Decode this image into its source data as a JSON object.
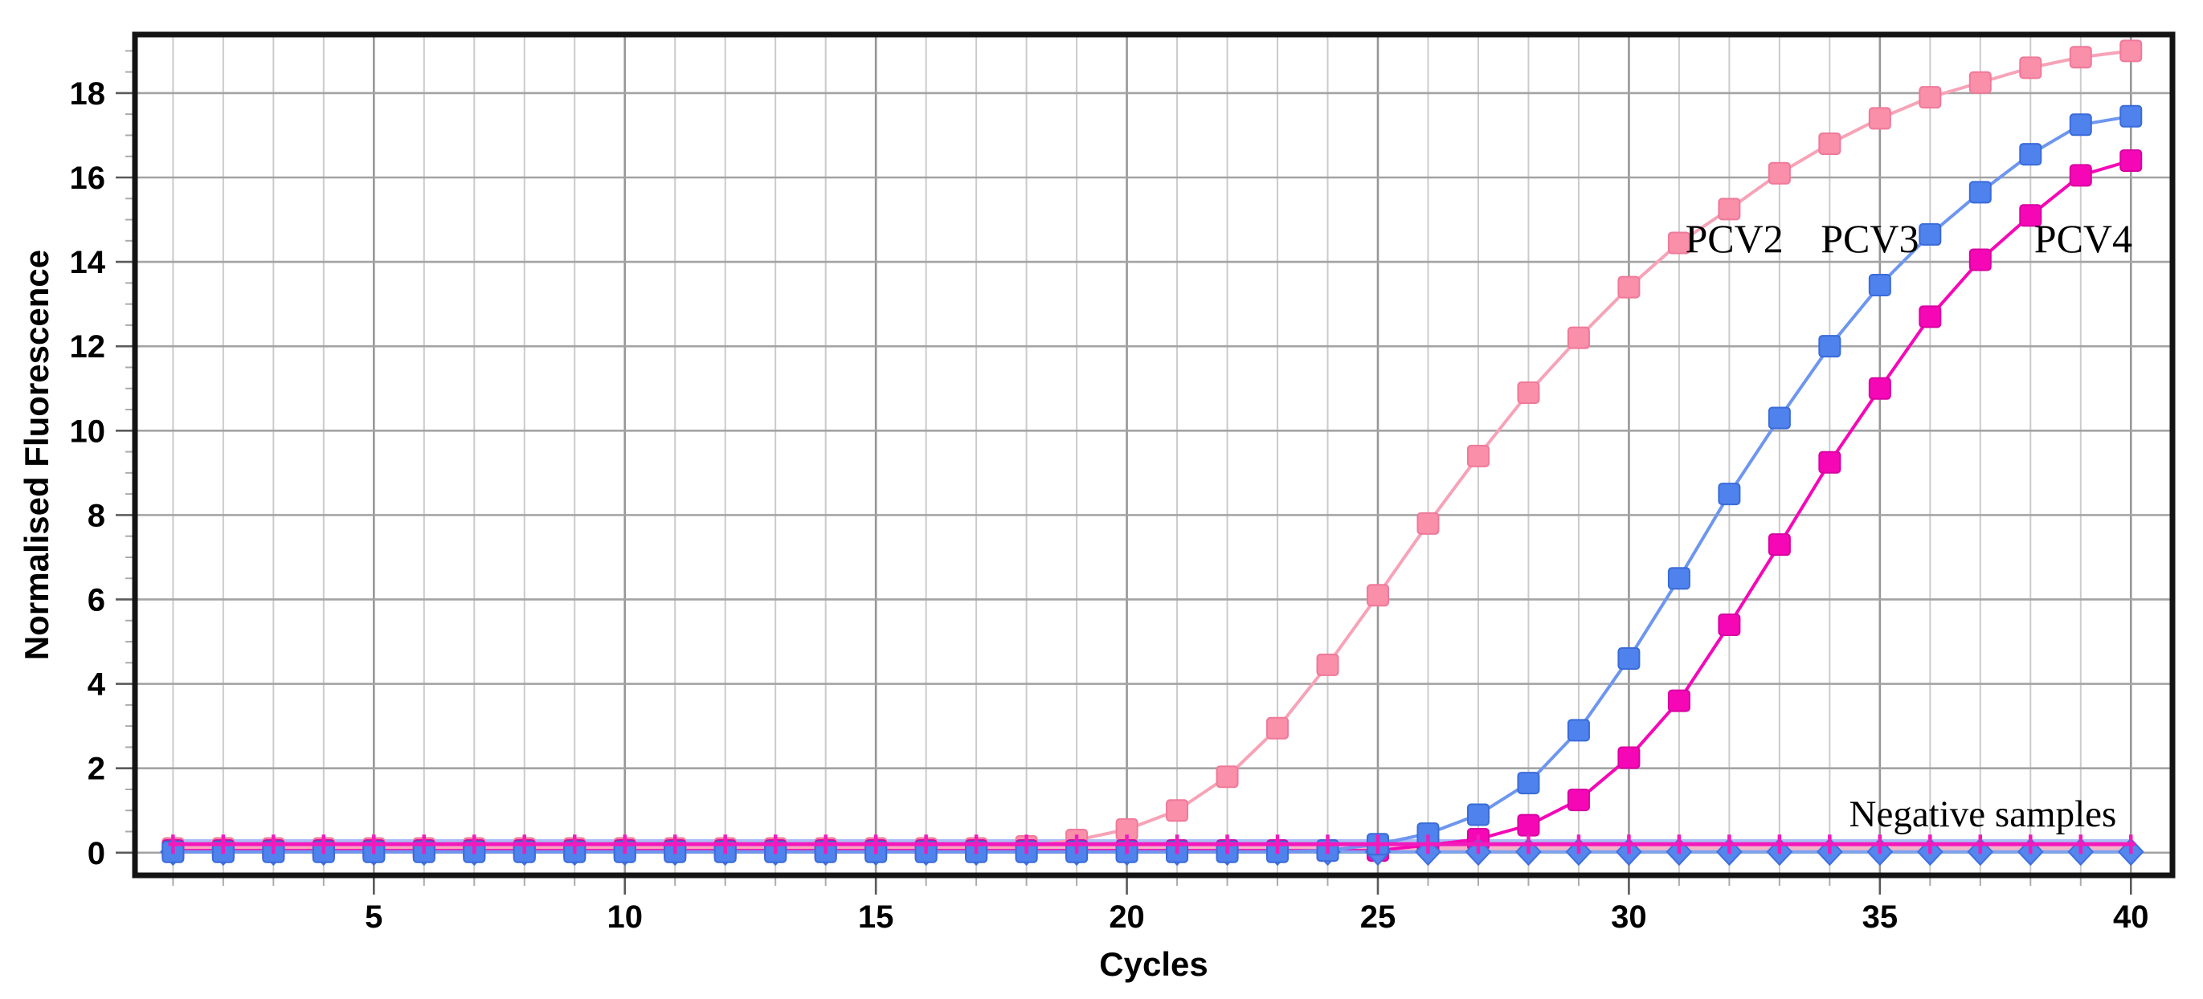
{
  "chart_data": {
    "type": "line",
    "title": "",
    "xlabel": "Cycles",
    "ylabel": "Normalised Fluorescence",
    "xlim": [
      0.29,
      40.78
    ],
    "ylim": [
      -0.48,
      19.33
    ],
    "x_major_ticks": [
      5,
      10,
      15,
      20,
      25,
      30,
      35,
      40
    ],
    "x_minor_tick_step": 1,
    "y_major_ticks": [
      0,
      2,
      4,
      6,
      8,
      10,
      12,
      14,
      16,
      18
    ],
    "y_minor_tick_step": 0.5,
    "grid": {
      "vertical_every_cycle": true,
      "horizontal_every": 2
    },
    "legend_position": "none",
    "cycles": [
      1,
      2,
      3,
      4,
      5,
      6,
      7,
      8,
      9,
      10,
      11,
      12,
      13,
      14,
      15,
      16,
      17,
      18,
      19,
      20,
      21,
      22,
      23,
      24,
      25,
      26,
      27,
      28,
      29,
      30,
      31,
      32,
      33,
      34,
      35,
      36,
      37,
      38,
      39,
      40
    ],
    "series": [
      {
        "name": "PCV2",
        "marker": "square",
        "line_color": "#f7a3b7",
        "marker_fill": "#f98fa9",
        "marker_edge": "#f0799a",
        "values": [
          0.1,
          0.1,
          0.1,
          0.1,
          0.1,
          0.1,
          0.1,
          0.1,
          0.1,
          0.1,
          0.1,
          0.1,
          0.1,
          0.1,
          0.1,
          0.1,
          0.1,
          0.15,
          0.3,
          0.55,
          1.0,
          1.8,
          2.95,
          4.45,
          6.1,
          7.8,
          9.4,
          10.9,
          12.2,
          13.4,
          14.45,
          15.25,
          16.1,
          16.8,
          17.4,
          17.9,
          18.25,
          18.6,
          18.85,
          19.0
        ]
      },
      {
        "name": "PCV3",
        "marker": "square",
        "line_color": "#6e96ef",
        "marker_fill": "#4f82ec",
        "marker_edge": "#3a6bd9",
        "values": [
          0.02,
          0.02,
          0.02,
          0.02,
          0.02,
          0.02,
          0.02,
          0.02,
          0.02,
          0.02,
          0.02,
          0.02,
          0.02,
          0.02,
          0.02,
          0.02,
          0.02,
          0.02,
          0.02,
          0.02,
          0.02,
          0.02,
          0.02,
          0.05,
          0.2,
          0.45,
          0.9,
          1.65,
          2.9,
          4.6,
          6.5,
          8.5,
          10.3,
          12.0,
          13.45,
          14.65,
          15.65,
          16.55,
          17.25,
          17.45
        ]
      },
      {
        "name": "PCV4",
        "marker": "square",
        "line_color": "#f607b6",
        "marker_fill": "#f607b6",
        "marker_edge": "#d800a2",
        "values": [
          0.05,
          0.05,
          0.05,
          0.05,
          0.05,
          0.05,
          0.05,
          0.05,
          0.05,
          0.05,
          0.05,
          0.05,
          0.05,
          0.05,
          0.05,
          0.05,
          0.05,
          0.05,
          0.05,
          0.05,
          0.05,
          0.05,
          0.05,
          0.05,
          0.05,
          0.18,
          0.32,
          0.65,
          1.25,
          2.25,
          3.6,
          5.4,
          7.3,
          9.25,
          11.0,
          12.7,
          14.05,
          15.1,
          16.05,
          16.4
        ]
      },
      {
        "name": "negative-light-blue",
        "marker": "none",
        "line_color": "#a8bef4",
        "values_constant": 0.27
      },
      {
        "name": "negative-pink",
        "marker": "none",
        "line_color": "#f4b2c6",
        "values_constant": 0.1
      },
      {
        "name": "negative-blue-diamonds",
        "marker": "diamond",
        "line_color": "#7da3f0",
        "marker_fill": "#5586ee",
        "marker_edge": "#4170dd",
        "values_constant": 0.02
      },
      {
        "name": "negative-magenta",
        "marker": "plus",
        "line_color": "#f31abc",
        "marker_fill": "#f31abc",
        "marker_edge": "#f31abc",
        "values_constant": 0.2
      }
    ],
    "draw_order": [
      "negative-light-blue",
      "negative-pink",
      "PCV2",
      "PCV4",
      "negative-blue-diamonds",
      "PCV3",
      "negative-magenta"
    ],
    "annotations": [
      {
        "text": "PCV2",
        "x": 32.1,
        "y": 14.55,
        "font_size": 50
      },
      {
        "text": "PCV3",
        "x": 34.8,
        "y": 14.55,
        "font_size": 50
      },
      {
        "text": "PCV4",
        "x": 39.05,
        "y": 14.55,
        "font_size": 50
      },
      {
        "text": "Negative samples",
        "x": 37.05,
        "y": 0.95,
        "font_size": 47
      }
    ],
    "colors": {
      "background": "#ffffff",
      "frame": "#141414",
      "grid_minor_v": "#cbcbcb",
      "grid_major_v": "#979797",
      "grid_major_h": "#a3a3a3",
      "tick_major": "#5a5a5a",
      "tick_minor": "#ababab",
      "text": "#000000"
    }
  }
}
